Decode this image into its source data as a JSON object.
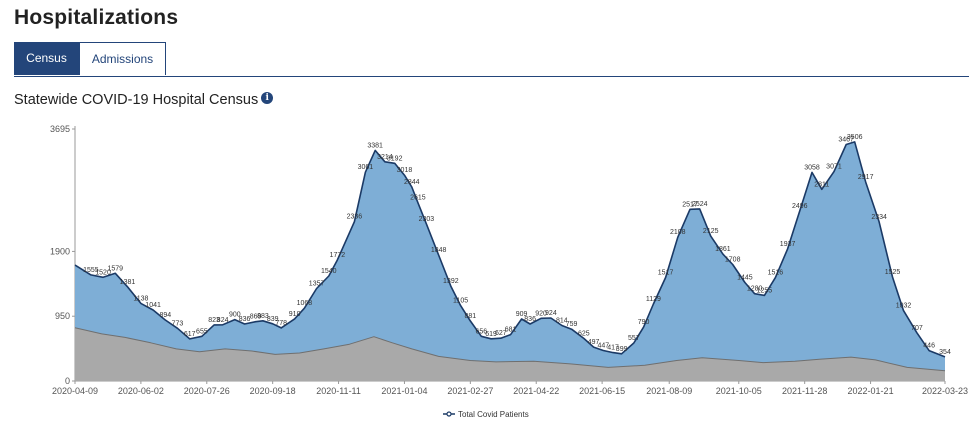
{
  "page": {
    "title": "Hospitalizations"
  },
  "tabs": [
    {
      "label": "Census",
      "active": true
    },
    {
      "label": "Admissions",
      "active": false
    }
  ],
  "chart_header": {
    "title": "Statewide COVID-19 Hospital Census",
    "info_icon": "info-icon"
  },
  "colors": {
    "accent": "#23457a",
    "area_total": "#7eaed6",
    "line_total": "#1b3a66",
    "area_icu": "#a9a9a9",
    "line_icu": "#6f6f6f"
  },
  "chart_data": {
    "type": "area",
    "title": "Statewide COVID-19 Hospital Census",
    "xlabel": "",
    "ylabel": "",
    "ylim": [
      0,
      3695
    ],
    "y_ticks": [
      0,
      950,
      1900,
      3695
    ],
    "x_ticks": [
      "2020-04-09",
      "2020-06-02",
      "2020-07-26",
      "2020-09-18",
      "2020-11-11",
      "2021-01-04",
      "2021-02-27",
      "2021-04-22",
      "2021-06-15",
      "2021-08-09",
      "2021-10-05",
      "2021-11-28",
      "2022-01-21",
      "2022-03-23"
    ],
    "legend": {
      "position": "bottom-center",
      "entries": [
        "Total Covid Patients"
      ]
    },
    "series": [
      {
        "name": "Total Covid Patients",
        "type": "area",
        "points": [
          [
            "2020-04-09",
            1700
          ],
          [
            "2020-04-22",
            1555
          ],
          [
            "2020-05-02",
            1520
          ],
          [
            "2020-05-12",
            1579
          ],
          [
            "2020-05-22",
            1381
          ],
          [
            "2020-06-02",
            1138
          ],
          [
            "2020-06-12",
            1041
          ],
          [
            "2020-06-22",
            894
          ],
          [
            "2020-07-02",
            773
          ],
          [
            "2020-07-12",
            617
          ],
          [
            "2020-07-22",
            655
          ],
          [
            "2020-08-01",
            823
          ],
          [
            "2020-08-08",
            824
          ],
          [
            "2020-08-18",
            900
          ],
          [
            "2020-08-26",
            836
          ],
          [
            "2020-09-04",
            869
          ],
          [
            "2020-09-10",
            883
          ],
          [
            "2020-09-18",
            839
          ],
          [
            "2020-09-25",
            778
          ],
          [
            "2020-10-06",
            910
          ],
          [
            "2020-10-14",
            1068
          ],
          [
            "2020-10-24",
            1357
          ],
          [
            "2020-11-03",
            1540
          ],
          [
            "2020-11-10",
            1772
          ],
          [
            "2020-11-24",
            2336
          ],
          [
            "2020-12-03",
            3061
          ],
          [
            "2020-12-11",
            3381
          ],
          [
            "2020-12-19",
            3214
          ],
          [
            "2020-12-27",
            3192
          ],
          [
            "2021-01-04",
            3018
          ],
          [
            "2021-01-10",
            2844
          ],
          [
            "2021-01-15",
            2615
          ],
          [
            "2021-01-22",
            2303
          ],
          [
            "2021-02-01",
            1848
          ],
          [
            "2021-02-11",
            1392
          ],
          [
            "2021-02-19",
            1105
          ],
          [
            "2021-02-27",
            881
          ],
          [
            "2021-03-08",
            656
          ],
          [
            "2021-03-16",
            619
          ],
          [
            "2021-03-24",
            627
          ],
          [
            "2021-04-01",
            681
          ],
          [
            "2021-04-10",
            909
          ],
          [
            "2021-04-17",
            836
          ],
          [
            "2021-04-26",
            920
          ],
          [
            "2021-05-04",
            924
          ],
          [
            "2021-05-13",
            814
          ],
          [
            "2021-05-21",
            759
          ],
          [
            "2021-05-31",
            625
          ],
          [
            "2021-06-08",
            497
          ],
          [
            "2021-06-16",
            447
          ],
          [
            "2021-06-24",
            417
          ],
          [
            "2021-07-01",
            399
          ],
          [
            "2021-07-11",
            557
          ],
          [
            "2021-07-19",
            790
          ],
          [
            "2021-07-27",
            1129
          ],
          [
            "2021-08-06",
            1517
          ],
          [
            "2021-08-16",
            2108
          ],
          [
            "2021-08-26",
            2517
          ],
          [
            "2021-09-03",
            2524
          ],
          [
            "2021-09-12",
            2125
          ],
          [
            "2021-09-22",
            1861
          ],
          [
            "2021-09-30",
            1708
          ],
          [
            "2021-10-10",
            1445
          ],
          [
            "2021-10-18",
            1280
          ],
          [
            "2021-10-26",
            1255
          ],
          [
            "2021-11-04",
            1516
          ],
          [
            "2021-11-14",
            1937
          ],
          [
            "2021-11-24",
            2496
          ],
          [
            "2021-12-04",
            3058
          ],
          [
            "2021-12-12",
            2811
          ],
          [
            "2021-12-22",
            3071
          ],
          [
            "2022-01-01",
            3467
          ],
          [
            "2022-01-08",
            3506
          ],
          [
            "2022-01-17",
            2917
          ],
          [
            "2022-01-28",
            2334
          ],
          [
            "2022-02-08",
            1525
          ],
          [
            "2022-02-17",
            1032
          ],
          [
            "2022-02-28",
            707
          ],
          [
            "2022-03-10",
            446
          ],
          [
            "2022-03-23",
            354
          ]
        ],
        "data_labels": [
          [
            "2020-04-22",
            1555
          ],
          [
            "2020-05-02",
            1520
          ],
          [
            "2020-05-12",
            1579
          ],
          [
            "2020-05-22",
            1381
          ],
          [
            "2020-06-02",
            1138
          ],
          [
            "2020-06-12",
            1041
          ],
          [
            "2020-06-22",
            894
          ],
          [
            "2020-07-02",
            773
          ],
          [
            "2020-07-12",
            617
          ],
          [
            "2020-07-22",
            655
          ],
          [
            "2020-08-01",
            823
          ],
          [
            "2020-08-08",
            824
          ],
          [
            "2020-08-18",
            900
          ],
          [
            "2020-08-26",
            836
          ],
          [
            "2020-09-04",
            869
          ],
          [
            "2020-09-10",
            883
          ],
          [
            "2020-09-18",
            839
          ],
          [
            "2020-09-25",
            778
          ],
          [
            "2020-10-06",
            910
          ],
          [
            "2020-10-14",
            1068
          ],
          [
            "2020-10-24",
            1357
          ],
          [
            "2020-11-03",
            1540
          ],
          [
            "2020-11-10",
            1772
          ],
          [
            "2020-11-24",
            2336
          ],
          [
            "2020-12-03",
            3061
          ],
          [
            "2020-12-11",
            3381
          ],
          [
            "2020-12-19",
            3214
          ],
          [
            "2020-12-27",
            3192
          ],
          [
            "2021-01-04",
            3018
          ],
          [
            "2021-01-10",
            2844
          ],
          [
            "2021-01-15",
            2615
          ],
          [
            "2021-01-22",
            2303
          ],
          [
            "2021-02-01",
            1848
          ],
          [
            "2021-02-11",
            1392
          ],
          [
            "2021-02-19",
            1105
          ],
          [
            "2021-02-27",
            881
          ],
          [
            "2021-03-08",
            656
          ],
          [
            "2021-03-16",
            619
          ],
          [
            "2021-03-24",
            627
          ],
          [
            "2021-04-01",
            681
          ],
          [
            "2021-04-10",
            909
          ],
          [
            "2021-04-17",
            836
          ],
          [
            "2021-04-26",
            920
          ],
          [
            "2021-05-04",
            924
          ],
          [
            "2021-05-13",
            814
          ],
          [
            "2021-05-21",
            759
          ],
          [
            "2021-05-31",
            625
          ],
          [
            "2021-06-08",
            497
          ],
          [
            "2021-06-16",
            447
          ],
          [
            "2021-06-24",
            417
          ],
          [
            "2021-07-01",
            399
          ],
          [
            "2021-07-11",
            557
          ],
          [
            "2021-07-19",
            790
          ],
          [
            "2021-07-27",
            1129
          ],
          [
            "2021-08-06",
            1517
          ],
          [
            "2021-08-16",
            2108
          ],
          [
            "2021-08-26",
            2517
          ],
          [
            "2021-09-03",
            2524
          ],
          [
            "2021-09-12",
            2125
          ],
          [
            "2021-09-22",
            1861
          ],
          [
            "2021-09-30",
            1708
          ],
          [
            "2021-10-10",
            1445
          ],
          [
            "2021-10-18",
            1280
          ],
          [
            "2021-10-26",
            1255
          ],
          [
            "2021-11-04",
            1516
          ],
          [
            "2021-11-14",
            1937
          ],
          [
            "2021-11-24",
            2496
          ],
          [
            "2021-12-04",
            3058
          ],
          [
            "2021-12-12",
            2811
          ],
          [
            "2021-12-22",
            3071
          ],
          [
            "2022-01-01",
            3467
          ],
          [
            "2022-01-08",
            3506
          ],
          [
            "2022-01-17",
            2917
          ],
          [
            "2022-01-28",
            2334
          ],
          [
            "2022-02-08",
            1525
          ],
          [
            "2022-02-17",
            1032
          ],
          [
            "2022-02-28",
            707
          ],
          [
            "2022-03-10",
            446
          ],
          [
            "2022-03-23",
            354
          ]
        ]
      },
      {
        "type": "area",
        "points": [
          [
            "2020-04-09",
            780
          ],
          [
            "2020-05-01",
            690
          ],
          [
            "2020-05-20",
            640
          ],
          [
            "2020-06-10",
            560
          ],
          [
            "2020-07-01",
            470
          ],
          [
            "2020-07-20",
            430
          ],
          [
            "2020-08-10",
            470
          ],
          [
            "2020-09-01",
            440
          ],
          [
            "2020-09-20",
            390
          ],
          [
            "2020-10-10",
            410
          ],
          [
            "2020-10-30",
            470
          ],
          [
            "2020-11-20",
            540
          ],
          [
            "2020-12-10",
            650
          ],
          [
            "2020-12-25",
            560
          ],
          [
            "2021-01-10",
            470
          ],
          [
            "2021-02-01",
            360
          ],
          [
            "2021-02-27",
            300
          ],
          [
            "2021-03-20",
            280
          ],
          [
            "2021-04-20",
            290
          ],
          [
            "2021-05-20",
            250
          ],
          [
            "2021-06-20",
            200
          ],
          [
            "2021-07-20",
            230
          ],
          [
            "2021-08-15",
            300
          ],
          [
            "2021-09-05",
            340
          ],
          [
            "2021-10-05",
            300
          ],
          [
            "2021-10-25",
            270
          ],
          [
            "2021-11-20",
            290
          ],
          [
            "2021-12-10",
            320
          ],
          [
            "2022-01-05",
            350
          ],
          [
            "2022-01-25",
            310
          ],
          [
            "2022-02-20",
            200
          ],
          [
            "2022-03-23",
            150
          ]
        ]
      }
    ]
  }
}
